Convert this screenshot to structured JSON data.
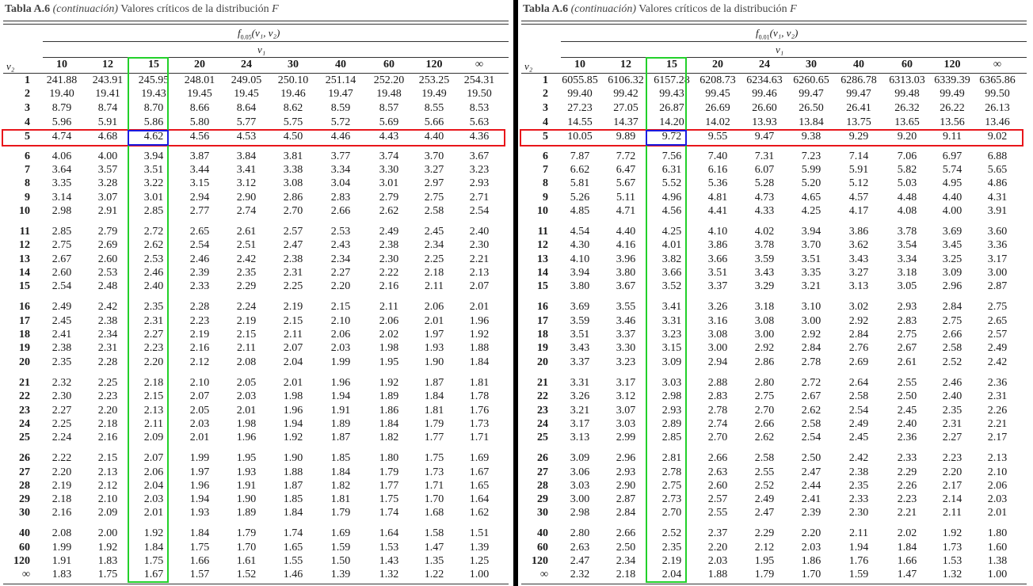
{
  "caption": {
    "label": "Tabla A.6",
    "paren": "(continuación)",
    "text": "Valores críticos de la distribución",
    "var": "F"
  },
  "row_header": "ν₂",
  "col_group": "ν₁",
  "col_headers": [
    "10",
    "12",
    "15",
    "20",
    "24",
    "30",
    "40",
    "60",
    "120",
    "∞"
  ],
  "row_labels": [
    "1",
    "2",
    "3",
    "4",
    "5",
    "6",
    "7",
    "8",
    "9",
    "10",
    "11",
    "12",
    "13",
    "14",
    "15",
    "16",
    "17",
    "18",
    "19",
    "20",
    "21",
    "22",
    "23",
    "24",
    "25",
    "26",
    "27",
    "28",
    "29",
    "30",
    "40",
    "60",
    "120",
    "∞"
  ],
  "tables": [
    {
      "f_label": "f",
      "f_sub": "0.05",
      "f_args": "(ν₁, ν₂)",
      "rows": [
        [
          "241.88",
          "243.91",
          "245.95",
          "248.01",
          "249.05",
          "250.10",
          "251.14",
          "252.20",
          "253.25",
          "254.31"
        ],
        [
          "19.40",
          "19.41",
          "19.43",
          "19.45",
          "19.45",
          "19.46",
          "19.47",
          "19.48",
          "19.49",
          "19.50"
        ],
        [
          "8.79",
          "8.74",
          "8.70",
          "8.66",
          "8.64",
          "8.62",
          "8.59",
          "8.57",
          "8.55",
          "8.53"
        ],
        [
          "5.96",
          "5.91",
          "5.86",
          "5.80",
          "5.77",
          "5.75",
          "5.72",
          "5.69",
          "5.66",
          "5.63"
        ],
        [
          "4.74",
          "4.68",
          "4.62",
          "4.56",
          "4.53",
          "4.50",
          "4.46",
          "4.43",
          "4.40",
          "4.36"
        ],
        [
          "4.06",
          "4.00",
          "3.94",
          "3.87",
          "3.84",
          "3.81",
          "3.77",
          "3.74",
          "3.70",
          "3.67"
        ],
        [
          "3.64",
          "3.57",
          "3.51",
          "3.44",
          "3.41",
          "3.38",
          "3.34",
          "3.30",
          "3.27",
          "3.23"
        ],
        [
          "3.35",
          "3.28",
          "3.22",
          "3.15",
          "3.12",
          "3.08",
          "3.04",
          "3.01",
          "2.97",
          "2.93"
        ],
        [
          "3.14",
          "3.07",
          "3.01",
          "2.94",
          "2.90",
          "2.86",
          "2.83",
          "2.79",
          "2.75",
          "2.71"
        ],
        [
          "2.98",
          "2.91",
          "2.85",
          "2.77",
          "2.74",
          "2.70",
          "2.66",
          "2.62",
          "2.58",
          "2.54"
        ],
        [
          "2.85",
          "2.79",
          "2.72",
          "2.65",
          "2.61",
          "2.57",
          "2.53",
          "2.49",
          "2.45",
          "2.40"
        ],
        [
          "2.75",
          "2.69",
          "2.62",
          "2.54",
          "2.51",
          "2.47",
          "2.43",
          "2.38",
          "2.34",
          "2.30"
        ],
        [
          "2.67",
          "2.60",
          "2.53",
          "2.46",
          "2.42",
          "2.38",
          "2.34",
          "2.30",
          "2.25",
          "2.21"
        ],
        [
          "2.60",
          "2.53",
          "2.46",
          "2.39",
          "2.35",
          "2.31",
          "2.27",
          "2.22",
          "2.18",
          "2.13"
        ],
        [
          "2.54",
          "2.48",
          "2.40",
          "2.33",
          "2.29",
          "2.25",
          "2.20",
          "2.16",
          "2.11",
          "2.07"
        ],
        [
          "2.49",
          "2.42",
          "2.35",
          "2.28",
          "2.24",
          "2.19",
          "2.15",
          "2.11",
          "2.06",
          "2.01"
        ],
        [
          "2.45",
          "2.38",
          "2.31",
          "2.23",
          "2.19",
          "2.15",
          "2.10",
          "2.06",
          "2.01",
          "1.96"
        ],
        [
          "2.41",
          "2.34",
          "2.27",
          "2.19",
          "2.15",
          "2.11",
          "2.06",
          "2.02",
          "1.97",
          "1.92"
        ],
        [
          "2.38",
          "2.31",
          "2.23",
          "2.16",
          "2.11",
          "2.07",
          "2.03",
          "1.98",
          "1.93",
          "1.88"
        ],
        [
          "2.35",
          "2.28",
          "2.20",
          "2.12",
          "2.08",
          "2.04",
          "1.99",
          "1.95",
          "1.90",
          "1.84"
        ],
        [
          "2.32",
          "2.25",
          "2.18",
          "2.10",
          "2.05",
          "2.01",
          "1.96",
          "1.92",
          "1.87",
          "1.81"
        ],
        [
          "2.30",
          "2.23",
          "2.15",
          "2.07",
          "2.03",
          "1.98",
          "1.94",
          "1.89",
          "1.84",
          "1.78"
        ],
        [
          "2.27",
          "2.20",
          "2.13",
          "2.05",
          "2.01",
          "1.96",
          "1.91",
          "1.86",
          "1.81",
          "1.76"
        ],
        [
          "2.25",
          "2.18",
          "2.11",
          "2.03",
          "1.98",
          "1.94",
          "1.89",
          "1.84",
          "1.79",
          "1.73"
        ],
        [
          "2.24",
          "2.16",
          "2.09",
          "2.01",
          "1.96",
          "1.92",
          "1.87",
          "1.82",
          "1.77",
          "1.71"
        ],
        [
          "2.22",
          "2.15",
          "2.07",
          "1.99",
          "1.95",
          "1.90",
          "1.85",
          "1.80",
          "1.75",
          "1.69"
        ],
        [
          "2.20",
          "2.13",
          "2.06",
          "1.97",
          "1.93",
          "1.88",
          "1.84",
          "1.79",
          "1.73",
          "1.67"
        ],
        [
          "2.19",
          "2.12",
          "2.04",
          "1.96",
          "1.91",
          "1.87",
          "1.82",
          "1.77",
          "1.71",
          "1.65"
        ],
        [
          "2.18",
          "2.10",
          "2.03",
          "1.94",
          "1.90",
          "1.85",
          "1.81",
          "1.75",
          "1.70",
          "1.64"
        ],
        [
          "2.16",
          "2.09",
          "2.01",
          "1.93",
          "1.89",
          "1.84",
          "1.79",
          "1.74",
          "1.68",
          "1.62"
        ],
        [
          "2.08",
          "2.00",
          "1.92",
          "1.84",
          "1.79",
          "1.74",
          "1.69",
          "1.64",
          "1.58",
          "1.51"
        ],
        [
          "1.99",
          "1.92",
          "1.84",
          "1.75",
          "1.70",
          "1.65",
          "1.59",
          "1.53",
          "1.47",
          "1.39"
        ],
        [
          "1.91",
          "1.83",
          "1.75",
          "1.66",
          "1.61",
          "1.55",
          "1.50",
          "1.43",
          "1.35",
          "1.25"
        ],
        [
          "1.83",
          "1.75",
          "1.67",
          "1.57",
          "1.52",
          "1.46",
          "1.39",
          "1.32",
          "1.22",
          "1.00"
        ]
      ]
    },
    {
      "f_label": "f",
      "f_sub": "0.01",
      "f_args": "(ν₁, ν₂)",
      "rows": [
        [
          "6055.85",
          "6106.32",
          "6157.28",
          "6208.73",
          "6234.63",
          "6260.65",
          "6286.78",
          "6313.03",
          "6339.39",
          "6365.86"
        ],
        [
          "99.40",
          "99.42",
          "99.43",
          "99.45",
          "99.46",
          "99.47",
          "99.47",
          "99.48",
          "99.49",
          "99.50"
        ],
        [
          "27.23",
          "27.05",
          "26.87",
          "26.69",
          "26.60",
          "26.50",
          "26.41",
          "26.32",
          "26.22",
          "26.13"
        ],
        [
          "14.55",
          "14.37",
          "14.20",
          "14.02",
          "13.93",
          "13.84",
          "13.75",
          "13.65",
          "13.56",
          "13.46"
        ],
        [
          "10.05",
          "9.89",
          "9.72",
          "9.55",
          "9.47",
          "9.38",
          "9.29",
          "9.20",
          "9.11",
          "9.02"
        ],
        [
          "7.87",
          "7.72",
          "7.56",
          "7.40",
          "7.31",
          "7.23",
          "7.14",
          "7.06",
          "6.97",
          "6.88"
        ],
        [
          "6.62",
          "6.47",
          "6.31",
          "6.16",
          "6.07",
          "5.99",
          "5.91",
          "5.82",
          "5.74",
          "5.65"
        ],
        [
          "5.81",
          "5.67",
          "5.52",
          "5.36",
          "5.28",
          "5.20",
          "5.12",
          "5.03",
          "4.95",
          "4.86"
        ],
        [
          "5.26",
          "5.11",
          "4.96",
          "4.81",
          "4.73",
          "4.65",
          "4.57",
          "4.48",
          "4.40",
          "4.31"
        ],
        [
          "4.85",
          "4.71",
          "4.56",
          "4.41",
          "4.33",
          "4.25",
          "4.17",
          "4.08",
          "4.00",
          "3.91"
        ],
        [
          "4.54",
          "4.40",
          "4.25",
          "4.10",
          "4.02",
          "3.94",
          "3.86",
          "3.78",
          "3.69",
          "3.60"
        ],
        [
          "4.30",
          "4.16",
          "4.01",
          "3.86",
          "3.78",
          "3.70",
          "3.62",
          "3.54",
          "3.45",
          "3.36"
        ],
        [
          "4.10",
          "3.96",
          "3.82",
          "3.66",
          "3.59",
          "3.51",
          "3.43",
          "3.34",
          "3.25",
          "3.17"
        ],
        [
          "3.94",
          "3.80",
          "3.66",
          "3.51",
          "3.43",
          "3.35",
          "3.27",
          "3.18",
          "3.09",
          "3.00"
        ],
        [
          "3.80",
          "3.67",
          "3.52",
          "3.37",
          "3.29",
          "3.21",
          "3.13",
          "3.05",
          "2.96",
          "2.87"
        ],
        [
          "3.69",
          "3.55",
          "3.41",
          "3.26",
          "3.18",
          "3.10",
          "3.02",
          "2.93",
          "2.84",
          "2.75"
        ],
        [
          "3.59",
          "3.46",
          "3.31",
          "3.16",
          "3.08",
          "3.00",
          "2.92",
          "2.83",
          "2.75",
          "2.65"
        ],
        [
          "3.51",
          "3.37",
          "3.23",
          "3.08",
          "3.00",
          "2.92",
          "2.84",
          "2.75",
          "2.66",
          "2.57"
        ],
        [
          "3.43",
          "3.30",
          "3.15",
          "3.00",
          "2.92",
          "2.84",
          "2.76",
          "2.67",
          "2.58",
          "2.49"
        ],
        [
          "3.37",
          "3.23",
          "3.09",
          "2.94",
          "2.86",
          "2.78",
          "2.69",
          "2.61",
          "2.52",
          "2.42"
        ],
        [
          "3.31",
          "3.17",
          "3.03",
          "2.88",
          "2.80",
          "2.72",
          "2.64",
          "2.55",
          "2.46",
          "2.36"
        ],
        [
          "3.26",
          "3.12",
          "2.98",
          "2.83",
          "2.75",
          "2.67",
          "2.58",
          "2.50",
          "2.40",
          "2.31"
        ],
        [
          "3.21",
          "3.07",
          "2.93",
          "2.78",
          "2.70",
          "2.62",
          "2.54",
          "2.45",
          "2.35",
          "2.26"
        ],
        [
          "3.17",
          "3.03",
          "2.89",
          "2.74",
          "2.66",
          "2.58",
          "2.49",
          "2.40",
          "2.31",
          "2.21"
        ],
        [
          "3.13",
          "2.99",
          "2.85",
          "2.70",
          "2.62",
          "2.54",
          "2.45",
          "2.36",
          "2.27",
          "2.17"
        ],
        [
          "3.09",
          "2.96",
          "2.81",
          "2.66",
          "2.58",
          "2.50",
          "2.42",
          "2.33",
          "2.23",
          "2.13"
        ],
        [
          "3.06",
          "2.93",
          "2.78",
          "2.63",
          "2.55",
          "2.47",
          "2.38",
          "2.29",
          "2.20",
          "2.10"
        ],
        [
          "3.03",
          "2.90",
          "2.75",
          "2.60",
          "2.52",
          "2.44",
          "2.35",
          "2.26",
          "2.17",
          "2.06"
        ],
        [
          "3.00",
          "2.87",
          "2.73",
          "2.57",
          "2.49",
          "2.41",
          "2.33",
          "2.23",
          "2.14",
          "2.03"
        ],
        [
          "2.98",
          "2.84",
          "2.70",
          "2.55",
          "2.47",
          "2.39",
          "2.30",
          "2.21",
          "2.11",
          "2.01"
        ],
        [
          "2.80",
          "2.66",
          "2.52",
          "2.37",
          "2.29",
          "2.20",
          "2.11",
          "2.02",
          "1.92",
          "1.80"
        ],
        [
          "2.63",
          "2.50",
          "2.35",
          "2.20",
          "2.12",
          "2.03",
          "1.94",
          "1.84",
          "1.73",
          "1.60"
        ],
        [
          "2.47",
          "2.34",
          "2.19",
          "2.03",
          "1.95",
          "1.86",
          "1.76",
          "1.66",
          "1.53",
          "1.38"
        ],
        [
          "2.32",
          "2.18",
          "2.04",
          "1.88",
          "1.79",
          "1.70",
          "1.59",
          "1.47",
          "1.32",
          "1.00"
        ]
      ]
    }
  ],
  "highlights": {
    "row_box_color": "#e8161b",
    "column_box_color": "#22d02a",
    "cell_box_color": "#1a1ae0",
    "highlighted_row": "5",
    "highlighted_column": "15"
  }
}
